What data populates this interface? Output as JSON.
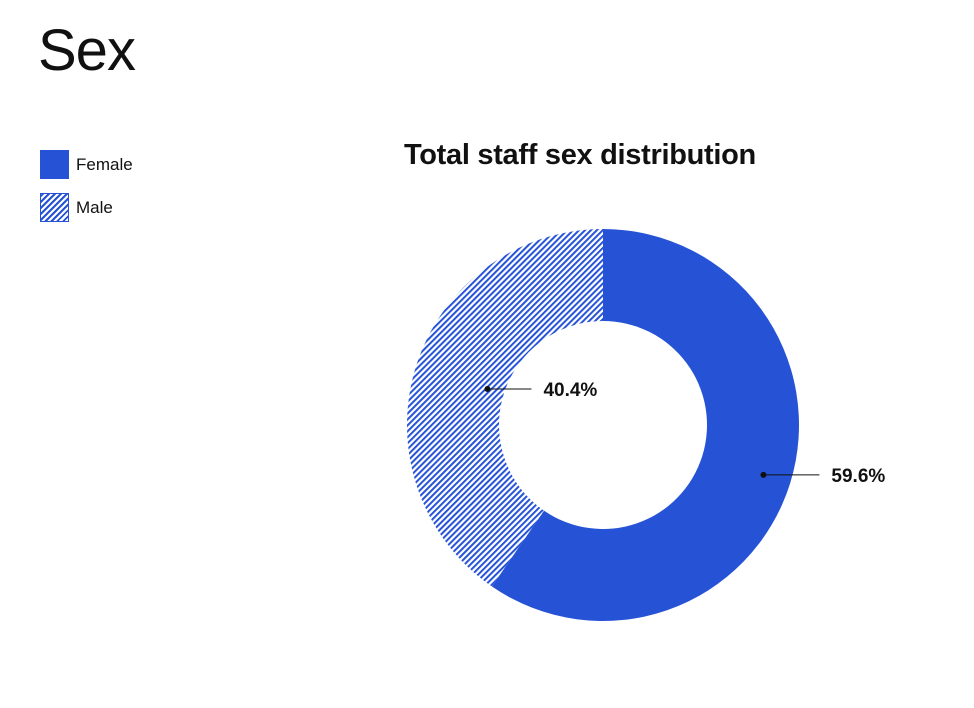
{
  "page": {
    "title": "Sex"
  },
  "legend": {
    "items": [
      {
        "label": "Female",
        "pattern": "solid",
        "color": "#2653d6"
      },
      {
        "label": "Male",
        "pattern": "hatched",
        "color": "#2653d6"
      }
    ]
  },
  "chart_data": {
    "type": "pie",
    "variant": "donut",
    "title": "Total staff sex distribution",
    "legend_position": "top-left",
    "slices": [
      {
        "label": "Female",
        "value": 59.6,
        "display": "59.6%",
        "color": "#2653d6",
        "pattern": "solid"
      },
      {
        "label": "Male",
        "value": 40.4,
        "display": "40.4%",
        "color": "#2653d6",
        "pattern": "hatched"
      }
    ]
  }
}
